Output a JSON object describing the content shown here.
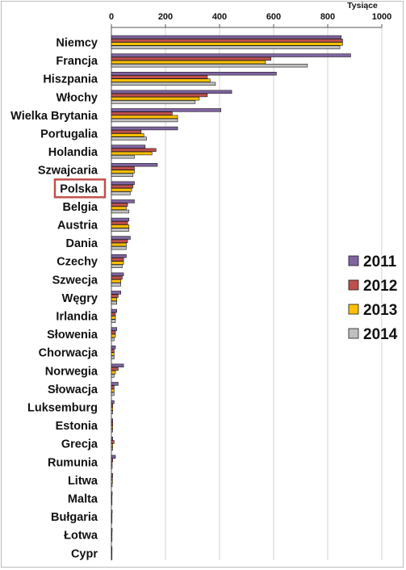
{
  "chart_data": {
    "type": "bar",
    "orientation": "horizontal",
    "unit": "Tysiące",
    "xlim": [
      0,
      1000
    ],
    "x_ticks": [
      "0",
      "200",
      "400",
      "600",
      "800",
      "1000"
    ],
    "grid": true,
    "legend_position": "right",
    "highlighted_category": "Polska",
    "highlight_color": "#c0504d",
    "categories": [
      "Niemcy",
      "Francja",
      "Hiszpania",
      "Włochy",
      "Wielka Brytania",
      "Portugalia",
      "Holandia",
      "Szwajcaria",
      "Polska",
      "Belgia",
      "Austria",
      "Dania",
      "Czechy",
      "Szwecja",
      "Węgry",
      "Irlandia",
      "Słowenia",
      "Chorwacja",
      "Norwegia",
      "Słowacja",
      "Luksemburg",
      "Estonia",
      "Grecja",
      "Rumunia",
      "Litwa",
      "Malta",
      "Bułgaria",
      "Łotwa",
      "Cypr"
    ],
    "series": [
      {
        "name": "2011",
        "color": "#8064a2",
        "values": [
          850,
          885,
          610,
          445,
          405,
          245,
          125,
          170,
          85,
          85,
          65,
          70,
          55,
          45,
          35,
          20,
          20,
          15,
          45,
          25,
          10,
          5,
          5,
          15,
          5,
          3,
          3,
          3,
          2
        ]
      },
      {
        "name": "2012",
        "color": "#c0504d",
        "values": [
          855,
          590,
          355,
          355,
          225,
          110,
          165,
          85,
          80,
          60,
          60,
          60,
          45,
          40,
          25,
          15,
          15,
          10,
          25,
          10,
          5,
          5,
          10,
          5,
          4,
          2,
          2,
          2,
          1
        ]
      },
      {
        "name": "2013",
        "color": "#ffc000",
        "values": [
          855,
          570,
          365,
          325,
          245,
          120,
          150,
          85,
          75,
          55,
          65,
          55,
          45,
          35,
          20,
          15,
          15,
          10,
          15,
          10,
          5,
          5,
          5,
          3,
          4,
          2,
          2,
          2,
          1
        ]
      },
      {
        "name": "2014",
        "color": "#c0c0c0",
        "values": [
          845,
          725,
          385,
          310,
          245,
          130,
          85,
          80,
          70,
          65,
          65,
          55,
          40,
          35,
          20,
          15,
          10,
          10,
          10,
          10,
          5,
          5,
          5,
          3,
          3,
          2,
          2,
          1,
          1
        ]
      }
    ]
  }
}
